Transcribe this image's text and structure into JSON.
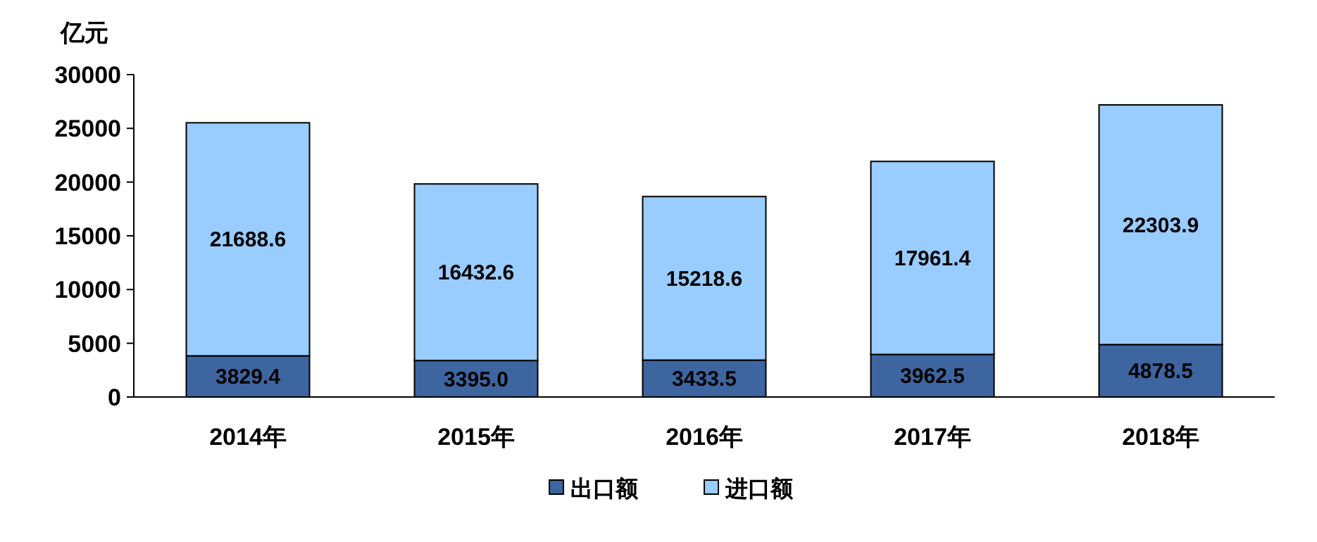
{
  "chart_data": {
    "type": "bar",
    "stacked": true,
    "ylabel": "亿元",
    "categories": [
      "2014年",
      "2015年",
      "2016年",
      "2017年",
      "2018年"
    ],
    "series": [
      {
        "name": "出口额",
        "color": "#3d65a0",
        "values": [
          3829.4,
          3395.0,
          3433.5,
          3962.5,
          4878.5
        ],
        "value_labels": [
          "3829.4",
          "3395.0",
          "3433.5",
          "3962.5",
          "4878.5"
        ]
      },
      {
        "name": "进口额",
        "color": "#99ccff",
        "values": [
          21688.6,
          16432.6,
          15218.6,
          17961.4,
          22303.9
        ],
        "value_labels": [
          "21688.6",
          "16432.6",
          "15218.6",
          "17961.4",
          "22303.9"
        ]
      }
    ],
    "ylim": [
      0,
      30000
    ],
    "yticks": [
      0,
      5000,
      10000,
      15000,
      20000,
      25000,
      30000
    ],
    "grid": false,
    "legend": "bottom"
  }
}
